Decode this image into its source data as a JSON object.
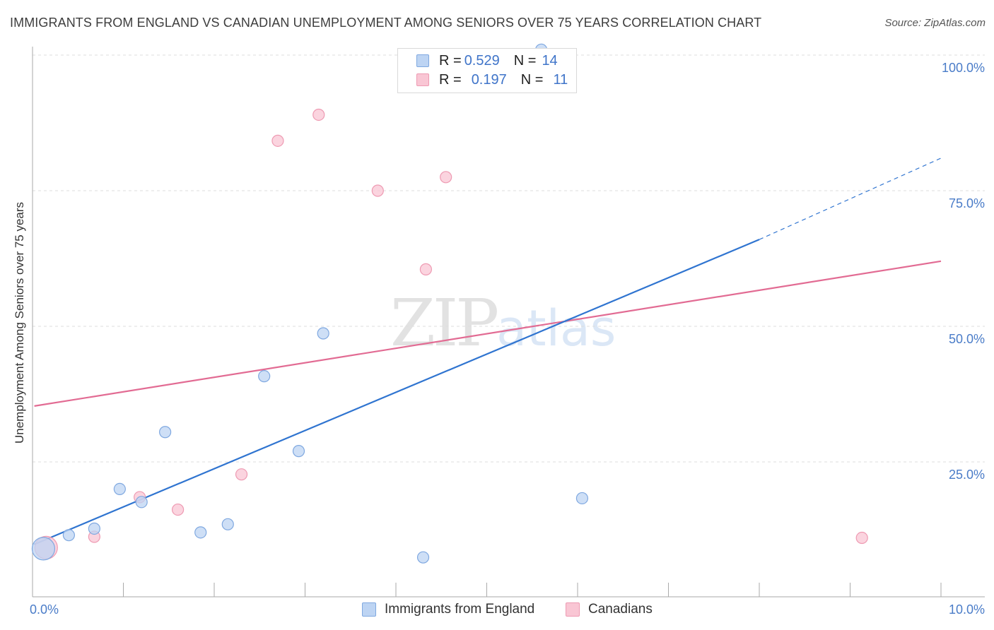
{
  "title": "IMMIGRANTS FROM ENGLAND VS CANADIAN UNEMPLOYMENT AMONG SENIORS OVER 75 YEARS CORRELATION CHART",
  "source": "Source: ZipAtlas.com",
  "watermark": {
    "zip": "ZIP",
    "atlas": "atlas"
  },
  "legend": {
    "rows": [
      {
        "r_label": "R = ",
        "r_value": "0.529",
        "n_label": "N = ",
        "n_value": "14"
      },
      {
        "r_label": "R = ",
        "r_value": "0.197",
        "n_label": "N = ",
        "n_value": "11"
      }
    ]
  },
  "bottom_legend": [
    "Immigrants from England",
    "Canadians"
  ],
  "colors": {
    "england_fill": "#bdd4f3",
    "england_stroke": "#7fa8e0",
    "england_line": "#2f74d0",
    "canada_fill": "#f9c6d4",
    "canada_stroke": "#ee9ab2",
    "canada_line": "#e26b93",
    "grid": "#dddddd",
    "axis": "#aaaaaa"
  },
  "chart_data": {
    "type": "scatter",
    "title": "IMMIGRANTS FROM ENGLAND VS CANADIAN UNEMPLOYMENT AMONG SENIORS OVER 75 YEARS CORRELATION CHART",
    "xlabel": "",
    "ylabel": "Unemployment Among Seniors over 75 years",
    "xlim": [
      0,
      10
    ],
    "ylim": [
      0,
      100
    ],
    "x_tick_labels": [
      "0.0%",
      "10.0%"
    ],
    "y_ticks": [
      25,
      50,
      75,
      100
    ],
    "y_tick_labels": [
      "25.0%",
      "50.0%",
      "75.0%",
      "100.0%"
    ],
    "grid": true,
    "series": [
      {
        "name": "Immigrants from England",
        "points": [
          {
            "x": 0.12,
            "y": 9.0,
            "big": true
          },
          {
            "x": 0.4,
            "y": 11.5
          },
          {
            "x": 0.68,
            "y": 12.7
          },
          {
            "x": 0.96,
            "y": 20.0
          },
          {
            "x": 1.2,
            "y": 17.6
          },
          {
            "x": 1.46,
            "y": 30.5
          },
          {
            "x": 1.85,
            "y": 12.0
          },
          {
            "x": 2.15,
            "y": 13.5
          },
          {
            "x": 2.55,
            "y": 40.8
          },
          {
            "x": 2.93,
            "y": 27.0
          },
          {
            "x": 3.2,
            "y": 48.7
          },
          {
            "x": 4.3,
            "y": 7.4
          },
          {
            "x": 5.6,
            "y": 101.0
          },
          {
            "x": 6.05,
            "y": 18.3
          }
        ],
        "trend": {
          "x0": 0.02,
          "y0": 9.8,
          "x1": 8.0,
          "y1": 66.0,
          "dash_to_x": 10.0,
          "dash_to_y": 81.0
        }
      },
      {
        "name": "Canadians",
        "points": [
          {
            "x": 0.15,
            "y": 9.2,
            "big": true
          },
          {
            "x": 0.68,
            "y": 11.2
          },
          {
            "x": 1.18,
            "y": 18.5
          },
          {
            "x": 1.6,
            "y": 16.2
          },
          {
            "x": 2.3,
            "y": 22.7
          },
          {
            "x": 2.7,
            "y": 84.2
          },
          {
            "x": 3.15,
            "y": 89.0
          },
          {
            "x": 3.8,
            "y": 75.0
          },
          {
            "x": 4.33,
            "y": 60.5
          },
          {
            "x": 4.55,
            "y": 77.5
          },
          {
            "x": 9.13,
            "y": 11.0
          }
        ],
        "trend": {
          "x0": 0.02,
          "y0": 35.3,
          "x1": 10.0,
          "y1": 62.0
        }
      }
    ]
  }
}
